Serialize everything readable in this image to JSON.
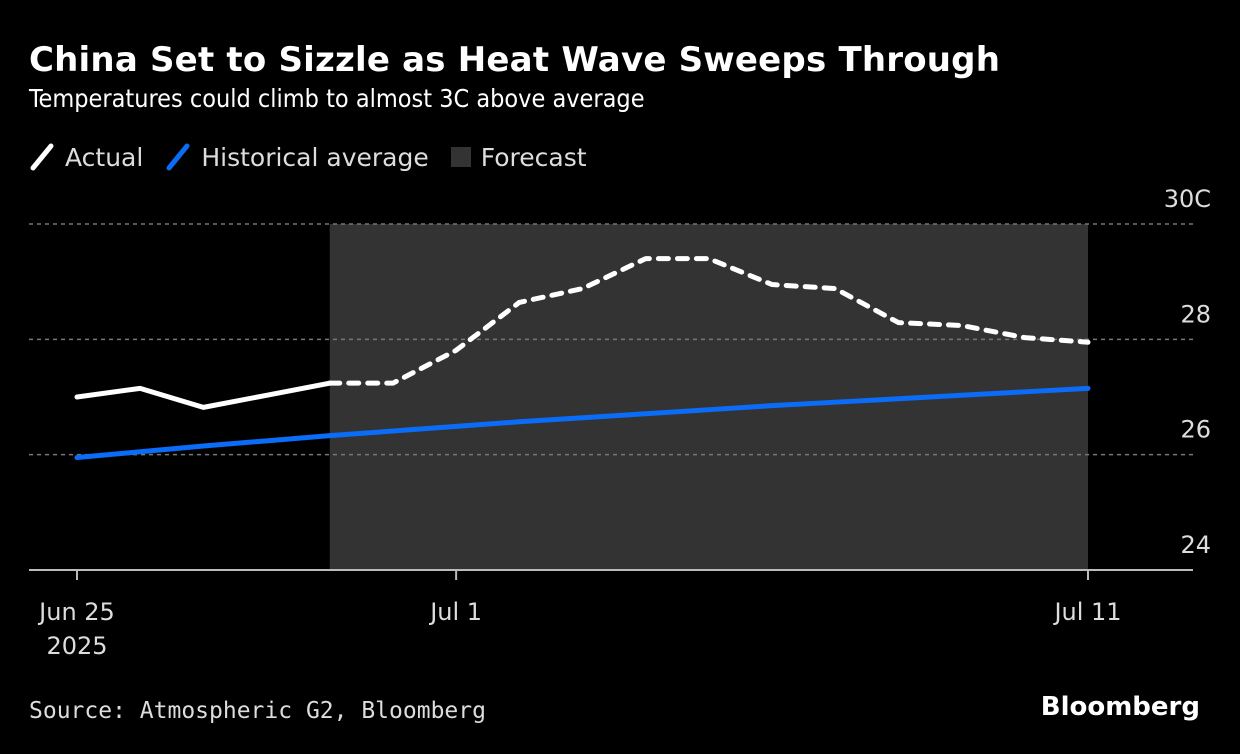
{
  "title": "China Set to Sizzle as Heat Wave Sweeps Through",
  "subtitle": "Temperatures could climb to almost 3C above average",
  "legend": [
    {
      "label": "Actual",
      "color": "#ffffff",
      "kind": "line"
    },
    {
      "label": "Historical average",
      "color": "#0a6cf7",
      "kind": "line"
    },
    {
      "label": "Forecast",
      "color": "#333333",
      "kind": "box"
    }
  ],
  "source": "Source: Atmospheric G2, Bloomberg",
  "brand": "Bloomberg",
  "chart_data": {
    "type": "line",
    "title": "China Set to Sizzle as Heat Wave Sweeps Through",
    "subtitle": "Temperatures could climb to almost 3C above average",
    "xlabel": "",
    "ylabel": "",
    "x": [
      "2025-06-25",
      "2025-06-26",
      "2025-06-27",
      "2025-06-28",
      "2025-06-29",
      "2025-06-30",
      "2025-07-01",
      "2025-07-02",
      "2025-07-03",
      "2025-07-04",
      "2025-07-05",
      "2025-07-06",
      "2025-07-07",
      "2025-07-08",
      "2025-07-09",
      "2025-07-10",
      "2025-07-11"
    ],
    "x_ticks": [
      {
        "index": 0,
        "label": "Jun 25",
        "sublabel": "2025"
      },
      {
        "index": 6,
        "label": "Jul 1",
        "sublabel": ""
      },
      {
        "index": 16,
        "label": "Jul 11",
        "sublabel": ""
      }
    ],
    "ylim": [
      24,
      30
    ],
    "y_ticks": [
      {
        "value": 24,
        "label": "24"
      },
      {
        "value": 26,
        "label": "26"
      },
      {
        "value": 28,
        "label": "28"
      },
      {
        "value": 30,
        "label": "30C"
      }
    ],
    "grid": true,
    "y_axis_position": "right",
    "forecast_start_index": 4,
    "forecast_end_index": 16,
    "series": [
      {
        "name": "Actual",
        "color": "#ffffff",
        "style": "solid-then-dashed-in-forecast",
        "values": [
          27.0,
          27.15,
          26.82,
          27.03,
          27.24,
          27.24,
          27.81,
          28.64,
          28.88,
          29.4,
          29.4,
          28.95,
          28.88,
          28.29,
          28.24,
          28.03,
          27.95
        ]
      },
      {
        "name": "Historical average",
        "color": "#0a6cf7",
        "style": "solid",
        "values": [
          25.95,
          26.05,
          26.15,
          26.24,
          26.33,
          26.41,
          26.49,
          26.57,
          26.64,
          26.71,
          26.78,
          26.85,
          26.91,
          26.97,
          27.03,
          27.09,
          27.15
        ]
      }
    ],
    "legend": [
      "Actual",
      "Historical average",
      "Forecast"
    ],
    "legend_position": "top-left"
  }
}
